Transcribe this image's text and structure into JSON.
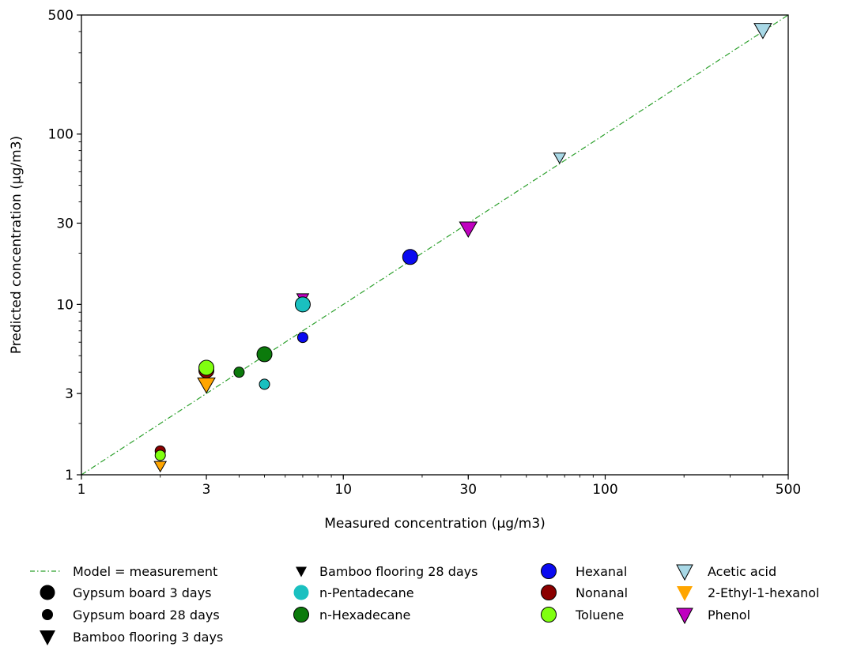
{
  "chart_data": {
    "type": "scatter",
    "xlabel": "Measured concentration (µg/m3)",
    "ylabel": "Predicted concentration (µg/m3)",
    "xscale": "log",
    "yscale": "log",
    "xlim": [
      1,
      500
    ],
    "ylim": [
      1,
      500
    ],
    "xticks": [
      {
        "v": 1,
        "label": "1"
      },
      {
        "v": 3,
        "label": "3"
      },
      {
        "v": 10,
        "label": "10"
      },
      {
        "v": 30,
        "label": "30"
      },
      {
        "v": 100,
        "label": "100"
      },
      {
        "v": 500,
        "label": "500"
      }
    ],
    "yticks": [
      {
        "v": 1,
        "label": "1"
      },
      {
        "v": 3,
        "label": "3"
      },
      {
        "v": 10,
        "label": "10"
      },
      {
        "v": 30,
        "label": "30"
      },
      {
        "v": 100,
        "label": "100"
      },
      {
        "v": 500,
        "label": "500"
      }
    ],
    "grid": false,
    "legend_placement": "below",
    "model_line": {
      "label": "Model = measurement",
      "color": "#2ca02c",
      "style": "dash-dot"
    },
    "legend": [
      {
        "label": "Model = measurement",
        "kind": "line",
        "color": "#2ca02c"
      },
      {
        "label": "Gypsum board 3 days",
        "kind": "circle-large",
        "color": "#000000"
      },
      {
        "label": "Gypsum board 28 days",
        "kind": "circle-small",
        "color": "#000000"
      },
      {
        "label": "Bamboo flooring 3 days",
        "kind": "triangle-large",
        "color": "#000000"
      },
      {
        "label": "Bamboo flooring 28 days",
        "kind": "triangle-small",
        "color": "#000000"
      },
      {
        "label": "n-Pentadecane",
        "kind": "circle",
        "color": "#1ac0c0"
      },
      {
        "label": "n-Hexadecane",
        "kind": "circle",
        "color": "#0b7a0b",
        "edge": true
      },
      {
        "label": "Hexanal",
        "kind": "circle",
        "color": "#0a0af0",
        "edge": true
      },
      {
        "label": "Nonanal",
        "kind": "circle",
        "color": "#8b0000",
        "edge": true
      },
      {
        "label": "Toluene",
        "kind": "circle",
        "color": "#80ff10",
        "edge": true
      },
      {
        "label": "Acetic acid",
        "kind": "triangle",
        "color": "#a8d8e6",
        "edge": true
      },
      {
        "label": "2-Ethyl-1-hexanol",
        "kind": "triangle",
        "color": "#ffa500"
      },
      {
        "label": "Phenol",
        "kind": "triangle",
        "color": "#c000c0",
        "edge": true
      }
    ],
    "points": [
      {
        "compound": "Acetic acid",
        "material": "Bamboo flooring 3 days",
        "x": 400,
        "y": 410,
        "color": "#a8d8e6"
      },
      {
        "compound": "Acetic acid",
        "material": "Bamboo flooring 28 days",
        "x": 67,
        "y": 73,
        "color": "#a8d8e6"
      },
      {
        "compound": "Phenol",
        "material": "Bamboo flooring 3 days",
        "x": 30,
        "y": 28,
        "color": "#c000c0"
      },
      {
        "compound": "Phenol",
        "material": "Bamboo flooring 28 days",
        "x": 7,
        "y": 10.9,
        "color": "#c000c0"
      },
      {
        "compound": "Hexanal",
        "material": "Gypsum board 3 days",
        "x": 18,
        "y": 19,
        "color": "#0a0af0"
      },
      {
        "compound": "Hexanal",
        "material": "Gypsum board 28 days",
        "x": 7,
        "y": 6.4,
        "color": "#0a0af0"
      },
      {
        "compound": "n-Pentadecane",
        "material": "Gypsum board 3 days",
        "x": 7,
        "y": 10,
        "color": "#1ac0c0"
      },
      {
        "compound": "n-Pentadecane",
        "material": "Gypsum board 28 days",
        "x": 5,
        "y": 3.4,
        "color": "#1ac0c0"
      },
      {
        "compound": "n-Hexadecane",
        "material": "Gypsum board 3 days",
        "x": 5,
        "y": 5.1,
        "color": "#0b7a0b"
      },
      {
        "compound": "n-Hexadecane",
        "material": "Gypsum board 28 days",
        "x": 4,
        "y": 4.0,
        "color": "#0b7a0b"
      },
      {
        "compound": "2-Ethyl-1-hexanol",
        "material": "Bamboo flooring 3 days",
        "x": 3,
        "y": 3.4,
        "color": "#ffa500"
      },
      {
        "compound": "Nonanal",
        "material": "Gypsum board 3 days",
        "x": 3,
        "y": 4.1,
        "color": "#8b0000"
      },
      {
        "compound": "Toluene",
        "material": "Gypsum board 3 days",
        "x": 3,
        "y": 4.25,
        "color": "#80ff10"
      },
      {
        "compound": "2-Ethyl-1-hexanol",
        "material": "Bamboo flooring 28 days",
        "x": 2,
        "y": 1.13,
        "color": "#ffa500"
      },
      {
        "compound": "Nonanal",
        "material": "Gypsum board 28 days",
        "x": 2,
        "y": 1.38,
        "color": "#8b0000"
      },
      {
        "compound": "Toluene",
        "material": "Gypsum board 28 days",
        "x": 2,
        "y": 1.3,
        "color": "#80ff10"
      }
    ]
  }
}
